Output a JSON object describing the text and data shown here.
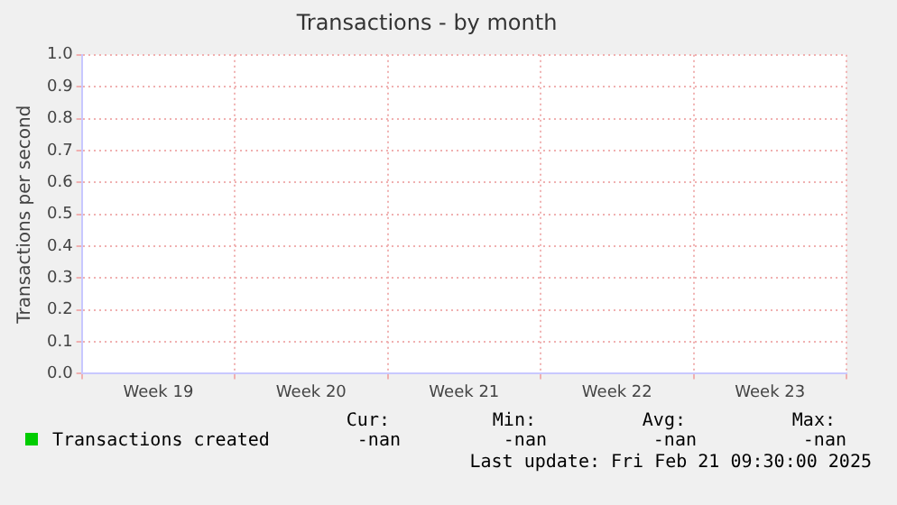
{
  "chart_data": {
    "type": "line",
    "title": "Transactions - by month",
    "ylabel": "Transactions per second",
    "categories": [
      "Week 19",
      "Week 20",
      "Week 21",
      "Week 22",
      "Week 23"
    ],
    "series": [
      {
        "name": "Transactions created",
        "color": "#00cc00",
        "values": [
          null,
          null,
          null,
          null,
          null
        ]
      }
    ],
    "ylim": [
      0,
      1
    ],
    "yticks": [
      {
        "value": 0,
        "label": "0.0"
      },
      {
        "value": 0.1,
        "label": "0.1"
      },
      {
        "value": 0.2,
        "label": "0.2"
      },
      {
        "value": 0.3,
        "label": "0.3"
      },
      {
        "value": 0.4,
        "label": "0.4"
      },
      {
        "value": 0.5,
        "label": "0.5"
      },
      {
        "value": 0.6,
        "label": "0.6"
      },
      {
        "value": 0.7,
        "label": "0.7"
      },
      {
        "value": 0.8,
        "label": "0.8"
      },
      {
        "value": 0.9,
        "label": "0.9"
      },
      {
        "value": 1,
        "label": "1.0"
      }
    ],
    "grid": true,
    "legend": "bottom left",
    "annotations": [
      "Cur:",
      "Min:",
      "Avg:",
      "Max:",
      "-nan",
      "-nan",
      "-nan",
      "-nan",
      "Last update: Fri Feb 21 09:30:00 2025"
    ]
  }
}
